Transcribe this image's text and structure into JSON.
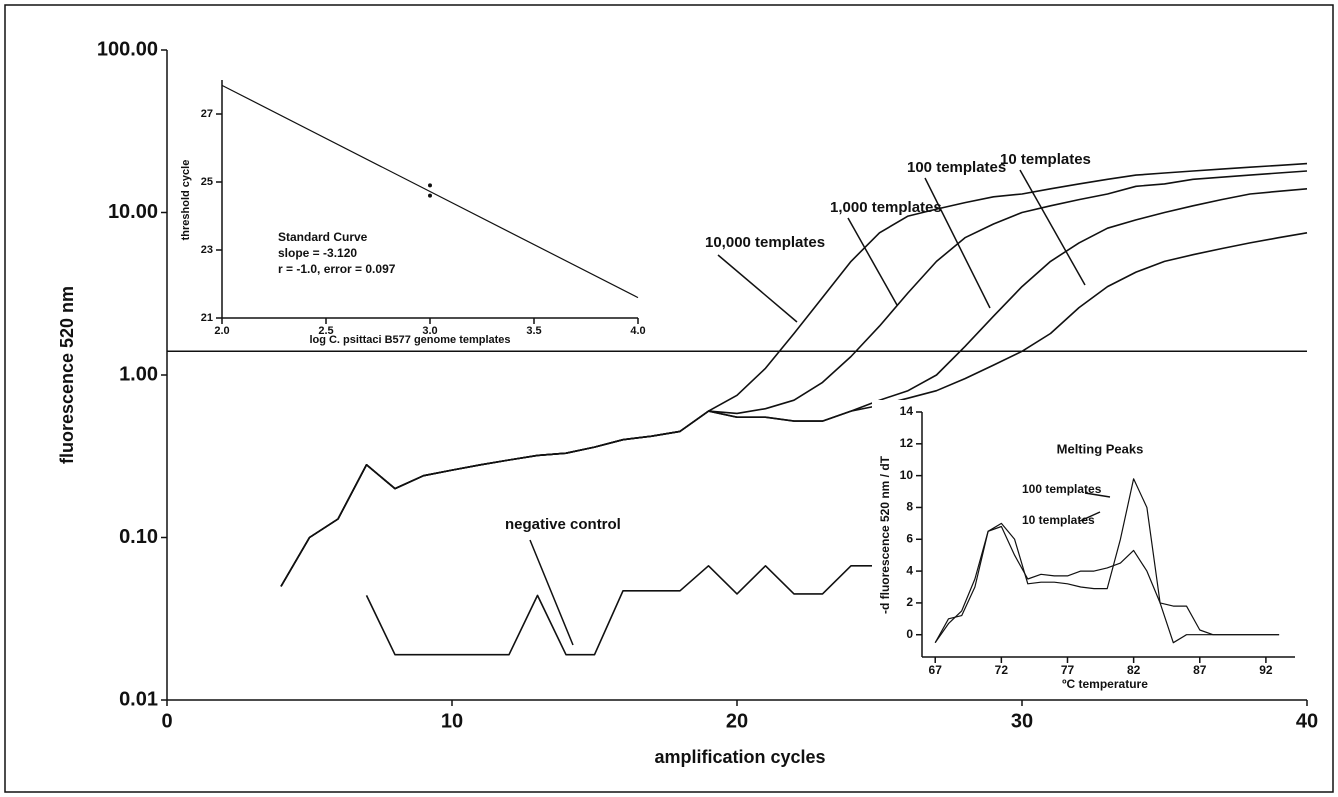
{
  "chart_data": [
    {
      "type": "line",
      "log": true,
      "xlabel": "amplification cycles",
      "ylabel": "fluorescence 520 nm",
      "xlim": [
        0,
        40
      ],
      "xticks": [
        0,
        10,
        20,
        30,
        40
      ],
      "ylim": [
        0.01,
        100
      ],
      "yticks": [
        {
          "value": 0.01,
          "label": "0.01"
        },
        {
          "value": 0.1,
          "label": "0.10"
        },
        {
          "value": 1,
          "label": "1.00"
        },
        {
          "value": 10,
          "label": "10.00"
        },
        {
          "value": 100,
          "label": "100.00"
        }
      ],
      "threshold": 1.4,
      "x": [
        4,
        5,
        6,
        7,
        8,
        9,
        10,
        11,
        12,
        13,
        14,
        15,
        16,
        17,
        18,
        19,
        20,
        21,
        22,
        23,
        24,
        25,
        26,
        27,
        28,
        29,
        30,
        31,
        32,
        33,
        34,
        35,
        36,
        37,
        38,
        39,
        40
      ],
      "series": [
        {
          "name": "10,000 templates",
          "color": "#111111",
          "values": [
            0.05,
            0.1,
            0.13,
            0.28,
            0.2,
            0.24,
            0.26,
            0.28,
            0.3,
            0.32,
            0.33,
            0.36,
            0.4,
            0.42,
            0.45,
            0.6,
            0.75,
            1.1,
            1.8,
            3.0,
            5.0,
            7.5,
            9.5,
            10.5,
            11.5,
            12.5,
            13,
            14,
            15,
            16,
            17,
            17.5,
            18,
            18.5,
            19,
            19.5,
            20
          ]
        },
        {
          "name": "1,000 templates",
          "color": "#111111",
          "values": [
            0.05,
            0.1,
            0.13,
            0.28,
            0.2,
            0.24,
            0.26,
            0.28,
            0.3,
            0.32,
            0.33,
            0.36,
            0.4,
            0.42,
            0.45,
            0.6,
            0.58,
            0.62,
            0.7,
            0.9,
            1.3,
            2.0,
            3.2,
            5.0,
            7.0,
            8.5,
            10,
            11,
            12,
            13,
            14.5,
            15,
            16,
            16.5,
            17,
            17.5,
            18
          ]
        },
        {
          "name": "100 templates",
          "color": "#111111",
          "values": [
            0.05,
            0.1,
            0.13,
            0.28,
            0.2,
            0.24,
            0.26,
            0.28,
            0.3,
            0.32,
            0.33,
            0.36,
            0.4,
            0.42,
            0.45,
            0.6,
            0.55,
            0.55,
            0.52,
            0.52,
            0.6,
            0.7,
            0.8,
            1.0,
            1.5,
            2.3,
            3.5,
            5,
            6.5,
            8,
            9,
            10,
            11,
            12,
            13,
            13.5,
            14
          ]
        },
        {
          "name": "10 templates",
          "color": "#111111",
          "values": [
            0.05,
            0.1,
            0.13,
            0.28,
            0.2,
            0.24,
            0.26,
            0.28,
            0.3,
            0.32,
            0.33,
            0.36,
            0.4,
            0.42,
            0.45,
            0.6,
            0.55,
            0.55,
            0.52,
            0.52,
            0.6,
            0.65,
            0.72,
            0.8,
            0.95,
            1.15,
            1.4,
            1.8,
            2.6,
            3.5,
            4.3,
            5,
            5.5,
            6,
            6.5,
            7,
            7.5
          ]
        },
        {
          "name": "negative control",
          "color": "#111111",
          "x": [
            7,
            8,
            9,
            10,
            11,
            12,
            13,
            14,
            15,
            16,
            17,
            18,
            19,
            20,
            21,
            22,
            23,
            24,
            25
          ],
          "values": [
            0.044,
            0.019,
            0.019,
            0.019,
            0.019,
            0.019,
            0.044,
            0.019,
            0.019,
            0.047,
            0.047,
            0.047,
            0.067,
            0.045,
            0.067,
            0.045,
            0.045,
            0.067,
            0.067
          ]
        }
      ]
    },
    {
      "type": "line",
      "xlabel": "log C. psittaci B577 genome templates",
      "ylabel": "threshold cycle",
      "annotations": [
        "Standard Curve",
        "slope = -3.120",
        "r = -1.0, error = 0.097"
      ],
      "xlim": [
        2,
        4
      ],
      "xticks": [
        {
          "value": 2,
          "label": "2.0"
        },
        2.5,
        {
          "value": 3,
          "label": "3.0"
        },
        3.5,
        {
          "value": 4,
          "label": "4.0"
        }
      ],
      "ylim": [
        21,
        28
      ],
      "yticks": [
        21,
        23,
        25,
        27
      ],
      "series": [
        {
          "color": "#111111",
          "x": [
            2,
            4
          ],
          "values": [
            27.84,
            21.6
          ]
        },
        {
          "color": "#111111",
          "marker": true,
          "x": [
            3,
            3
          ],
          "values": [
            24.9,
            24.6
          ]
        }
      ]
    },
    {
      "type": "line",
      "title": "Melting Peaks",
      "xlabel": "ºC temperature",
      "ylabel": "-d fluorescence 520 nm / dT",
      "xlim": [
        66,
        94.2
      ],
      "xticks": [
        67,
        72,
        77,
        82,
        87,
        92
      ],
      "ylim": [
        -1.4,
        14
      ],
      "yticks": [
        0,
        2,
        4,
        6,
        8,
        10,
        12,
        14
      ],
      "x": [
        67,
        68,
        69,
        70,
        71,
        72,
        73,
        74,
        75,
        76,
        77,
        78,
        79,
        80,
        81,
        82,
        83,
        84,
        85,
        86,
        87,
        88,
        89,
        90,
        91,
        92,
        93
      ],
      "series": [
        {
          "name": "100 templates",
          "color": "#111111",
          "values": [
            -0.5,
            1,
            1.2,
            3,
            6.5,
            7,
            6,
            3.2,
            3.3,
            3.3,
            3.2,
            3,
            2.9,
            2.9,
            6,
            9.8,
            8,
            2,
            -0.5,
            0,
            0,
            0,
            0,
            0,
            0,
            0,
            0
          ]
        },
        {
          "name": "10 templates",
          "color": "#111111",
          "values": [
            -0.5,
            0.7,
            1.5,
            3.5,
            6.5,
            6.8,
            5,
            3.5,
            3.8,
            3.7,
            3.7,
            4,
            4,
            4.2,
            4.5,
            5.3,
            4,
            2,
            1.8,
            1.8,
            0.3,
            0,
            0,
            0,
            0,
            0,
            0
          ]
        }
      ]
    }
  ]
}
